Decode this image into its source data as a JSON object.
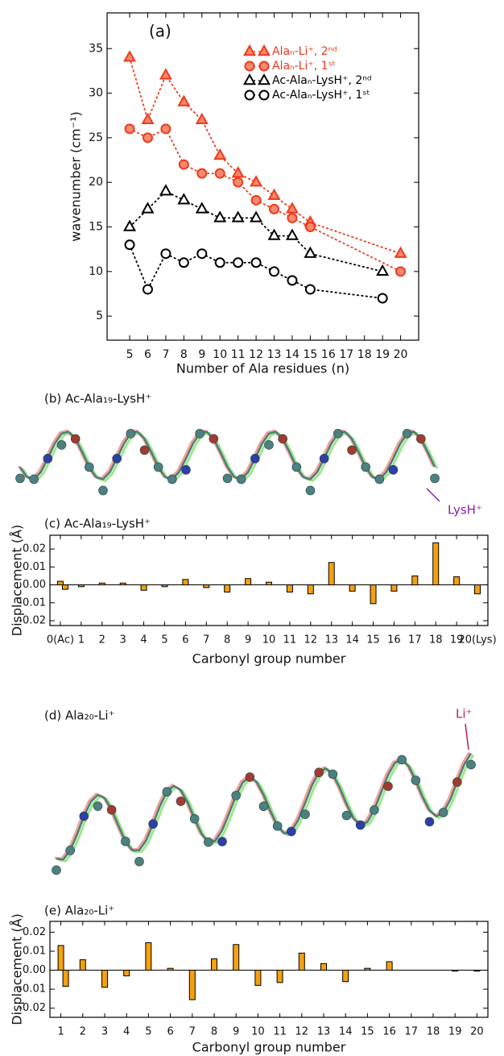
{
  "chart_data": [
    {
      "type": "line",
      "title": "(a)",
      "x_label": "Number of Ala residues (n)",
      "y_label": "wavenumber (cm⁻¹)",
      "xlim": [
        3.75,
        21
      ],
      "ylim": [
        2.3,
        39
      ],
      "xticks": [
        5,
        6,
        7,
        8,
        9,
        10,
        11,
        12,
        13,
        14,
        15,
        16,
        17,
        18,
        19,
        20
      ],
      "yticks": [
        5,
        10,
        15,
        20,
        25,
        30,
        35
      ],
      "legend": "upper right",
      "linestyle": "dotted",
      "series": [
        {
          "name": "Alaₙ-Li⁺, 2ⁿᵈ",
          "color": "#ee3a1c",
          "fill": "#f7876a",
          "marker": "triangle",
          "x": [
            5,
            6,
            7,
            8,
            9,
            10,
            11,
            12,
            13,
            14,
            15,
            20
          ],
          "values": [
            34,
            27,
            32,
            29,
            27,
            23,
            21,
            20,
            18.5,
            17,
            15.5,
            12
          ]
        },
        {
          "name": "Alaₙ-Li⁺, 1ˢᵗ",
          "color": "#ee3a1c",
          "fill": "#f58a72",
          "marker": "circle",
          "x": [
            5,
            6,
            7,
            8,
            9,
            10,
            11,
            12,
            13,
            14,
            15,
            20
          ],
          "values": [
            26,
            25,
            26,
            22,
            21,
            21,
            20,
            18,
            17,
            16,
            15,
            10
          ]
        },
        {
          "name": "Ac-Alaₙ-LysH⁺, 2ⁿᵈ",
          "color": "#000000",
          "fill": "#ffffff",
          "marker": "triangle",
          "x": [
            5,
            6,
            7,
            8,
            9,
            10,
            11,
            12,
            13,
            14,
            15,
            19
          ],
          "values": [
            15,
            17,
            19,
            18,
            17,
            16,
            16,
            16,
            14,
            14,
            12,
            10
          ]
        },
        {
          "name": "Ac-Alaₙ-LysH⁺, 1ˢᵗ",
          "color": "#000000",
          "fill": "#ffffff",
          "marker": "circle",
          "x": [
            5,
            6,
            7,
            8,
            9,
            10,
            11,
            12,
            13,
            14,
            15,
            19
          ],
          "values": [
            13,
            8,
            12,
            11,
            12,
            11,
            11,
            11,
            10,
            9,
            8,
            7
          ]
        }
      ]
    },
    {
      "type": "bar",
      "title": "(c) Ac-Ala₁₉-LysH⁺",
      "x_label": "Carbonyl group number",
      "y_label": "Displacement (Å)",
      "categories": [
        "0(Ac)",
        "1",
        "2",
        "3",
        "4",
        "5",
        "6",
        "7",
        "8",
        "9",
        "10",
        "11",
        "12",
        "13",
        "14",
        "15",
        "16",
        "17",
        "18",
        "19",
        "20(Lys)"
      ],
      "ylim": [
        -0.0227,
        0.0277
      ],
      "yticks": [
        0.02,
        0.01,
        {
          "value": 0,
          "label": "0.00"
        },
        -0.01,
        -0.02
      ],
      "series": [
        {
          "color": "#f5a00f",
          "values": [
            0.002,
            -0.001,
            0.001,
            0.001,
            -0.003,
            -0.001,
            0.003,
            -0.0015,
            -0.004,
            0.0035,
            0.0015,
            -0.004,
            -0.005,
            0.0125,
            -0.0035,
            -0.0105,
            -0.0035,
            0.005,
            0.0235,
            0.0045,
            -0.005
          ]
        },
        {
          "color": "#f5a00f",
          "values": [
            -0.0025,
            null,
            null,
            null,
            null,
            null,
            null,
            null,
            null,
            null,
            null,
            null,
            null,
            null,
            null,
            null,
            null,
            null,
            null,
            null,
            null
          ]
        }
      ]
    },
    {
      "type": "bar",
      "title": "(e) Ala₂₀-Li⁺",
      "x_label": "Carbonyl group number",
      "y_label": "Displacement (Å)",
      "categories": [
        "1",
        "2",
        "3",
        "4",
        "5",
        "6",
        "7",
        "8",
        "9",
        "10",
        "11",
        "12",
        "13",
        "14",
        "15",
        "16",
        "17",
        "18",
        "19",
        "20"
      ],
      "ylim": [
        -0.0248,
        0.0257
      ],
      "yticks": [
        0.02,
        0.01,
        {
          "value": 0,
          "label": "0.00"
        },
        -0.01,
        -0.02
      ],
      "series": [
        {
          "color": "#f5a00f",
          "values": [
            0.013,
            0.0055,
            -0.009,
            -0.003,
            0.0145,
            0.001,
            -0.0155,
            0.006,
            0.0135,
            -0.008,
            -0.0065,
            0.009,
            0.0035,
            -0.006,
            0.001,
            0.0045,
            0,
            0,
            -0.0005,
            -0.0005
          ]
        },
        {
          "color": "#f5a00f",
          "values": [
            -0.0085,
            null,
            null,
            null,
            null,
            null,
            null,
            null,
            null,
            null,
            null,
            null,
            null,
            null,
            null,
            null,
            null,
            null,
            null,
            null
          ]
        }
      ]
    }
  ],
  "figures": [
    {
      "label": "(b) Ac-Ala₁₉-LysH⁺",
      "annotation": "LysH⁺"
    },
    {
      "label": "(d) Ala₂₀-Li⁺",
      "annotation": "Li⁺"
    }
  ]
}
